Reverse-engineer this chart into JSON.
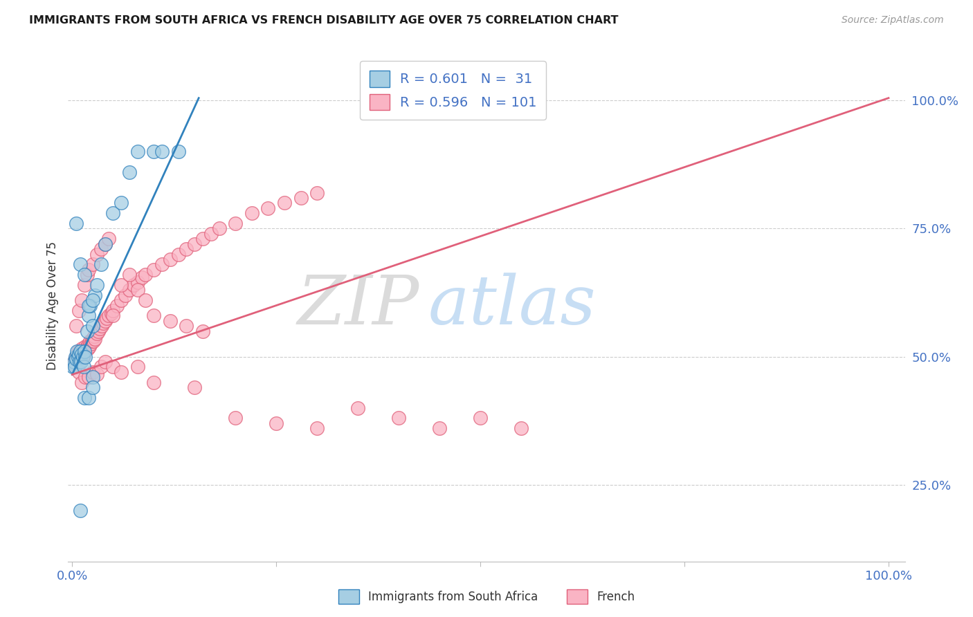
{
  "title": "IMMIGRANTS FROM SOUTH AFRICA VS FRENCH DISABILITY AGE OVER 75 CORRELATION CHART",
  "source": "Source: ZipAtlas.com",
  "ylabel": "Disability Age Over 75",
  "legend_label1": "Immigrants from South Africa",
  "legend_label2": "French",
  "r1": 0.601,
  "n1": 31,
  "r2": 0.596,
  "n2": 101,
  "blue_scatter_x": [
    0.001,
    0.002,
    0.003,
    0.004,
    0.005,
    0.006,
    0.007,
    0.008,
    0.009,
    0.01,
    0.011,
    0.012,
    0.013,
    0.014,
    0.015,
    0.016,
    0.018,
    0.02,
    0.022,
    0.025,
    0.028,
    0.03,
    0.035,
    0.04,
    0.05,
    0.06,
    0.07,
    0.08,
    0.1,
    0.11,
    0.13
  ],
  "blue_scatter_y": [
    0.48,
    0.49,
    0.48,
    0.5,
    0.495,
    0.51,
    0.5,
    0.505,
    0.49,
    0.51,
    0.49,
    0.505,
    0.5,
    0.48,
    0.51,
    0.5,
    0.55,
    0.58,
    0.6,
    0.56,
    0.62,
    0.64,
    0.68,
    0.72,
    0.78,
    0.8,
    0.86,
    0.9,
    0.9,
    0.9,
    0.9
  ],
  "blue_outlier_x": [
    0.005,
    0.01,
    0.015,
    0.02,
    0.025,
    0.015,
    0.02,
    0.025,
    0.025,
    0.01
  ],
  "blue_outlier_y": [
    0.76,
    0.68,
    0.66,
    0.6,
    0.61,
    0.42,
    0.42,
    0.46,
    0.44,
    0.2
  ],
  "pink_scatter_x": [
    0.002,
    0.003,
    0.004,
    0.005,
    0.006,
    0.007,
    0.008,
    0.009,
    0.01,
    0.011,
    0.012,
    0.013,
    0.014,
    0.015,
    0.016,
    0.017,
    0.018,
    0.019,
    0.02,
    0.021,
    0.022,
    0.023,
    0.024,
    0.025,
    0.026,
    0.027,
    0.028,
    0.03,
    0.032,
    0.034,
    0.036,
    0.038,
    0.04,
    0.042,
    0.045,
    0.048,
    0.05,
    0.055,
    0.06,
    0.065,
    0.07,
    0.075,
    0.08,
    0.085,
    0.09,
    0.1,
    0.11,
    0.12,
    0.13,
    0.14,
    0.15,
    0.16,
    0.17,
    0.18,
    0.2,
    0.22,
    0.24,
    0.26,
    0.28,
    0.3,
    0.005,
    0.008,
    0.012,
    0.015,
    0.018,
    0.02,
    0.025,
    0.03,
    0.035,
    0.04,
    0.045,
    0.05,
    0.06,
    0.07,
    0.08,
    0.09,
    0.1,
    0.12,
    0.14,
    0.16,
    0.008,
    0.012,
    0.016,
    0.02,
    0.025,
    0.03,
    0.035,
    0.04,
    0.05,
    0.06,
    0.08,
    0.1,
    0.15,
    0.2,
    0.25,
    0.3,
    0.35,
    0.4,
    0.45,
    0.5,
    0.55
  ],
  "pink_scatter_y": [
    0.49,
    0.485,
    0.495,
    0.5,
    0.5,
    0.51,
    0.505,
    0.5,
    0.51,
    0.505,
    0.515,
    0.5,
    0.505,
    0.51,
    0.52,
    0.515,
    0.52,
    0.515,
    0.525,
    0.52,
    0.53,
    0.525,
    0.53,
    0.535,
    0.53,
    0.54,
    0.535,
    0.545,
    0.55,
    0.555,
    0.56,
    0.565,
    0.57,
    0.575,
    0.58,
    0.585,
    0.59,
    0.6,
    0.61,
    0.62,
    0.63,
    0.64,
    0.645,
    0.655,
    0.66,
    0.67,
    0.68,
    0.69,
    0.7,
    0.71,
    0.72,
    0.73,
    0.74,
    0.75,
    0.76,
    0.78,
    0.79,
    0.8,
    0.81,
    0.82,
    0.56,
    0.59,
    0.61,
    0.64,
    0.66,
    0.67,
    0.68,
    0.7,
    0.71,
    0.72,
    0.73,
    0.58,
    0.64,
    0.66,
    0.63,
    0.61,
    0.58,
    0.57,
    0.56,
    0.55,
    0.47,
    0.45,
    0.46,
    0.46,
    0.47,
    0.465,
    0.48,
    0.49,
    0.48,
    0.47,
    0.48,
    0.45,
    0.44,
    0.38,
    0.37,
    0.36,
    0.4,
    0.38,
    0.36,
    0.38,
    0.36
  ],
  "blue_line_x": [
    0.0,
    0.155
  ],
  "blue_line_y": [
    0.465,
    1.005
  ],
  "pink_line_x": [
    0.0,
    1.0
  ],
  "pink_line_y": [
    0.465,
    1.005
  ],
  "xlim": [
    -0.005,
    1.02
  ],
  "ylim": [
    0.1,
    1.1
  ],
  "ytick_vals": [
    0.25,
    0.5,
    0.75,
    1.0
  ],
  "ytick_labels": [
    "25.0%",
    "50.0%",
    "75.0%",
    "100.0%"
  ],
  "xtick_vals": [
    0.0,
    0.25,
    0.5,
    0.75,
    1.0
  ],
  "xtick_labels": [
    "0.0%",
    "",
    "",
    "",
    "100.0%"
  ],
  "blue_color": "#a6cee3",
  "pink_color": "#fab4c4",
  "line_blue": "#3182bd",
  "line_pink": "#e0607a",
  "watermark_zip": "ZIP",
  "watermark_atlas": "atlas",
  "background_color": "#ffffff",
  "grid_color": "#cccccc"
}
